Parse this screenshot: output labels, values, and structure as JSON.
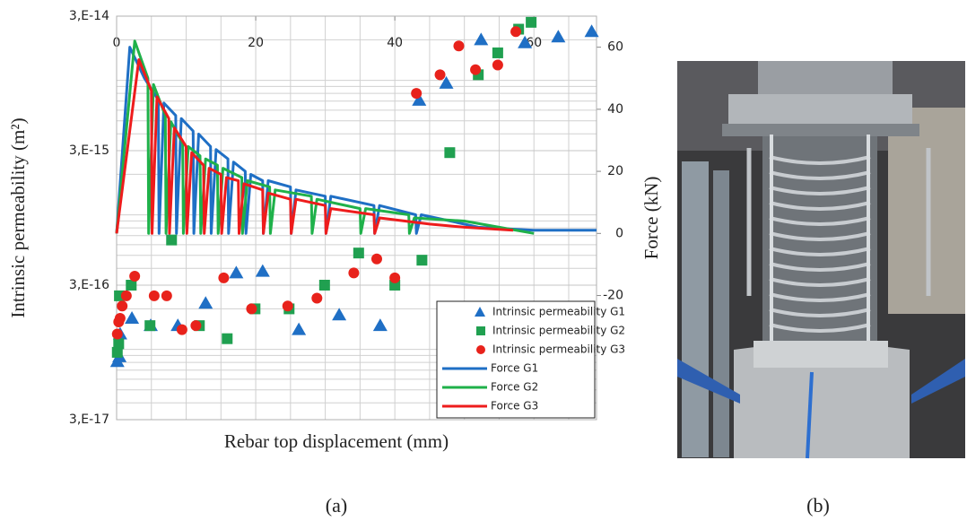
{
  "chart_data": {
    "type": "combo",
    "y_label": "Intrinsic permeability (m²)",
    "y2_label": "Force  (kN)",
    "x_label": "Rebar top displacement (mm)",
    "xlim": [
      0,
      69
    ],
    "xticks": [
      0,
      20,
      40,
      60
    ],
    "x_grid": [
      5,
      10,
      15,
      20,
      25,
      30,
      35,
      40,
      45,
      50,
      55,
      60,
      65
    ],
    "ylog": true,
    "ylim": [
      3e-17,
      3e-14
    ],
    "yticks": [
      {
        "value": 3e-14,
        "label": "3,E-14"
      },
      {
        "value": 3e-15,
        "label": "3,E-15"
      },
      {
        "value": 3e-16,
        "label": "3,E-16"
      },
      {
        "value": 3e-17,
        "label": "3,E-17"
      }
    ],
    "y_grid": [
      4e-17,
      5e-17,
      6e-17,
      7e-17,
      8e-17,
      9e-17,
      1e-16,
      2e-16,
      4e-16,
      5e-16,
      6e-16,
      7e-16,
      8e-16,
      9e-16,
      1e-15,
      2e-15,
      4e-15,
      5e-15,
      6e-15,
      7e-15,
      8e-15,
      9e-15,
      1e-14,
      2e-14
    ],
    "y2lim": [
      -60,
      70
    ],
    "y2ticks": [
      -20,
      0,
      20,
      40,
      60
    ],
    "grid": true,
    "legend": "lower right",
    "series": [
      {
        "name": "Intrinsic permeability G1",
        "type": "scatter",
        "marker": "triangle",
        "color": "#1f6fc5",
        "x": [
          0.1,
          0.4,
          0.5,
          2.2,
          4.9,
          8.8,
          12.8,
          17.2,
          21.0,
          26.2,
          32.0,
          37.9,
          43.5,
          47.4,
          52.4,
          58.7,
          63.5,
          68.3
        ],
        "values": [
          8.1e-17,
          8.8e-17,
          1.3e-16,
          1.7e-16,
          1.5e-16,
          1.5e-16,
          2.2e-16,
          3.7e-16,
          3.8e-16,
          1.4e-16,
          1.8e-16,
          1.5e-16,
          7.1e-15,
          9.5e-15,
          2e-14,
          1.9e-14,
          2.1e-14,
          2.3e-14
        ]
      },
      {
        "name": "Intrinsic permeability G2",
        "type": "scatter",
        "marker": "square",
        "color": "#20a050",
        "x": [
          0.1,
          0.3,
          0.4,
          2.1,
          4.8,
          7.9,
          11.9,
          15.9,
          19.9,
          24.8,
          29.9,
          34.8,
          40.0,
          43.9,
          47.9,
          52.0,
          54.8,
          57.8,
          59.6
        ],
        "values": [
          9.5e-17,
          1.1e-16,
          2.5e-16,
          3e-16,
          1.5e-16,
          6.5e-16,
          1.5e-16,
          1.2e-16,
          2e-16,
          2e-16,
          3e-16,
          5.2e-16,
          3e-16,
          4.6e-16,
          2.9e-15,
          1.1e-14,
          1.6e-14,
          2.4e-14,
          2.7e-14
        ]
      },
      {
        "name": "Intrinsic permeability G3",
        "type": "scatter",
        "marker": "circle",
        "color": "#e8221b",
        "x": [
          0.1,
          0.3,
          0.5,
          0.8,
          1.4,
          2.6,
          5.4,
          7.2,
          9.4,
          11.4,
          15.4,
          19.4,
          24.6,
          28.8,
          34.1,
          37.4,
          40.0,
          43.1,
          46.5,
          49.2,
          51.6,
          54.8,
          57.4
        ],
        "values": [
          1.3e-16,
          1.6e-16,
          1.7e-16,
          2.1e-16,
          2.5e-16,
          3.5e-16,
          2.5e-16,
          2.5e-16,
          1.4e-16,
          1.5e-16,
          3.4e-16,
          2e-16,
          2.1e-16,
          2.4e-16,
          3.7e-16,
          4.7e-16,
          3.4e-16,
          8e-15,
          1.1e-14,
          1.8e-14,
          1.2e-14,
          1.3e-14,
          2.3e-14
        ]
      },
      {
        "name": "Force G1",
        "type": "line",
        "axis": "y2",
        "color": "#1f6fc5",
        "x": [
          0,
          1.9,
          4,
          6,
          6.1,
          6.8,
          8.5,
          8.6,
          9.3,
          11,
          11.1,
          11.8,
          13.5,
          13.6,
          14.3,
          16,
          16.1,
          16.8,
          18.5,
          18.6,
          19.3,
          21,
          21.1,
          21.8,
          25,
          25.1,
          25.8,
          30,
          30.1,
          30.8,
          37,
          37.1,
          37.8,
          43,
          43.1,
          43.8,
          48,
          52,
          60,
          69
        ],
        "values": [
          0,
          60,
          50,
          43,
          0,
          42,
          38,
          0,
          37,
          33,
          0,
          32,
          28,
          0,
          27,
          24,
          0,
          23,
          20,
          0,
          19,
          17,
          0,
          17,
          15,
          0,
          14,
          12,
          0,
          12,
          9,
          0,
          9,
          6,
          0,
          6,
          4,
          2,
          1,
          1
        ]
      },
      {
        "name": "Force G2",
        "type": "line",
        "axis": "y2",
        "color": "#1fb14a",
        "x": [
          0,
          2.6,
          4.5,
          4.6,
          5.3,
          7,
          7.1,
          7.8,
          9.5,
          9.6,
          10.3,
          12,
          12.1,
          12.8,
          14.5,
          14.6,
          15.3,
          18,
          18.1,
          18.8,
          22,
          22.1,
          22.8,
          28,
          28.1,
          28.8,
          35,
          35.1,
          35.8,
          42,
          42.1,
          42.8,
          50,
          55,
          60
        ],
        "values": [
          0,
          62,
          50,
          0,
          48,
          38,
          0,
          36,
          29,
          0,
          28,
          25,
          0,
          24,
          22,
          0,
          21,
          18,
          0,
          17,
          15,
          0,
          14,
          12,
          0,
          11,
          8,
          0,
          8,
          6,
          0,
          5,
          4,
          2,
          0
        ]
      },
      {
        "name": "Force G3",
        "type": "line",
        "axis": "y2",
        "color": "#ee1c1c",
        "x": [
          0,
          3.2,
          5,
          5.1,
          5.8,
          7.5,
          7.6,
          8.3,
          10,
          10.1,
          10.8,
          12.5,
          12.6,
          13.3,
          15,
          15.1,
          15.8,
          17.5,
          17.6,
          18.3,
          21,
          21.1,
          21.8,
          25,
          25.1,
          25.8,
          30,
          30.1,
          30.8,
          37,
          37.1,
          37.8,
          45,
          50,
          57
        ],
        "values": [
          0,
          56,
          46,
          0,
          44,
          37,
          0,
          34,
          28,
          0,
          26,
          22,
          0,
          21,
          19,
          0,
          18,
          17,
          0,
          16,
          14,
          0,
          13,
          11,
          0,
          11,
          9,
          0,
          8,
          6,
          0,
          5,
          3,
          2,
          1
        ]
      }
    ]
  },
  "captions": [
    "(a)",
    "(b)"
  ]
}
